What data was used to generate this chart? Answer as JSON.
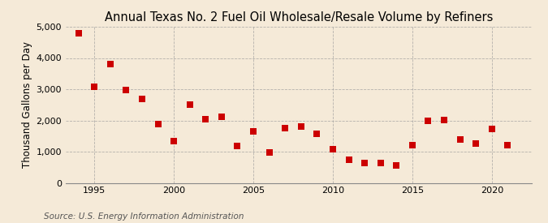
{
  "title": "Annual Texas No. 2 Fuel Oil Wholesale/Resale Volume by Refiners",
  "ylabel": "Thousand Gallons per Day",
  "source": "Source: U.S. Energy Information Administration",
  "years": [
    1994,
    1995,
    1996,
    1997,
    1998,
    1999,
    2000,
    2001,
    2002,
    2003,
    2004,
    2005,
    2006,
    2007,
    2008,
    2009,
    2010,
    2011,
    2012,
    2013,
    2014,
    2015,
    2016,
    2017,
    2018,
    2019,
    2020,
    2021
  ],
  "values": [
    4800,
    3080,
    3800,
    2980,
    2680,
    1880,
    1350,
    2500,
    2050,
    2120,
    1180,
    1650,
    980,
    1750,
    1800,
    1570,
    1080,
    730,
    640,
    640,
    560,
    1200,
    2000,
    2020,
    1380,
    1260,
    1730,
    1200
  ],
  "marker_color": "#cc0000",
  "marker_size": 28,
  "background_color": "#f5ead8",
  "grid_color": "#999999",
  "ylim": [
    0,
    5000
  ],
  "yticks": [
    0,
    1000,
    2000,
    3000,
    4000,
    5000
  ],
  "ytick_labels": [
    "0",
    "1,000",
    "2,000",
    "3,000",
    "4,000",
    "5,000"
  ],
  "xlim": [
    1993.2,
    2022.5
  ],
  "xticks": [
    1995,
    2000,
    2005,
    2010,
    2015,
    2020
  ],
  "title_fontsize": 10.5,
  "label_fontsize": 8.5,
  "tick_fontsize": 8,
  "source_fontsize": 7.5
}
